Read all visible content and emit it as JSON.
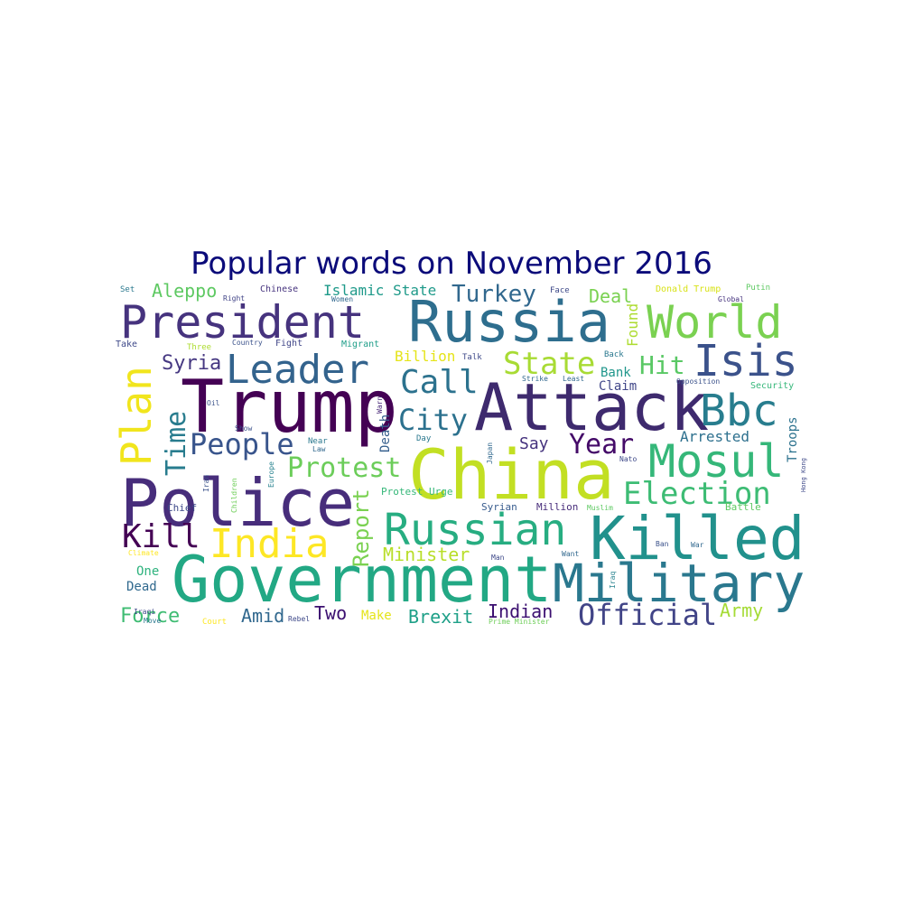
{
  "chart_data": {
    "type": "wordcloud",
    "title": "Popular words on November 2016",
    "title_color": "#0b0b7a",
    "palette": [
      "#440154",
      "#482878",
      "#3e4989",
      "#31688e",
      "#26828e",
      "#1f9e89",
      "#35b779",
      "#6ece58",
      "#b5de2b",
      "#fde725"
    ],
    "background": "#ffffff",
    "words": [
      {
        "text": "Trump",
        "rank": 1,
        "color": "#440154"
      },
      {
        "text": "Attack",
        "rank": 2,
        "color": "#3e2a6e"
      },
      {
        "text": "China",
        "rank": 3,
        "color": "#c2df23"
      },
      {
        "text": "Police",
        "rank": 4,
        "color": "#472d7b"
      },
      {
        "text": "Government",
        "rank": 5,
        "color": "#22a884"
      },
      {
        "text": "Russia",
        "rank": 6,
        "color": "#2e6e8e"
      },
      {
        "text": "Killed",
        "rank": 7,
        "color": "#21918c"
      },
      {
        "text": "President",
        "rank": 8,
        "color": "#46337e"
      },
      {
        "text": "Military",
        "rank": 9,
        "color": "#2a788e"
      },
      {
        "text": "Russian",
        "rank": 10,
        "color": "#27ad81"
      },
      {
        "text": "World",
        "rank": 11,
        "color": "#7ad151"
      },
      {
        "text": "Mosul",
        "rank": 12,
        "color": "#35b779"
      },
      {
        "text": "India",
        "rank": 13,
        "color": "#fde725"
      },
      {
        "text": "Leader",
        "rank": 14,
        "color": "#33638d"
      },
      {
        "text": "Plan",
        "rank": 15,
        "color": "#f1e51d"
      },
      {
        "text": "Isis",
        "rank": 16,
        "color": "#3b528b"
      },
      {
        "text": "Bbc",
        "rank": 17,
        "color": "#287d8e"
      },
      {
        "text": "Election",
        "rank": 18,
        "color": "#3dbc74"
      },
      {
        "text": "Official",
        "rank": 19,
        "color": "#414487"
      },
      {
        "text": "People",
        "rank": 20,
        "color": "#39558c"
      },
      {
        "text": "Kill",
        "rank": 21,
        "color": "#440154"
      },
      {
        "text": "Protest",
        "rank": 22,
        "color": "#6ccd5a"
      },
      {
        "text": "Call",
        "rank": 23,
        "color": "#2c728e"
      },
      {
        "text": "City",
        "rank": 24,
        "color": "#2c718e"
      },
      {
        "text": "State",
        "rank": 25,
        "color": "#a8db34"
      },
      {
        "text": "Year",
        "rank": 26,
        "color": "#440a68"
      },
      {
        "text": "Time",
        "rank": 27,
        "color": "#287c8e"
      },
      {
        "text": "Turkey",
        "rank": 28,
        "color": "#31688e"
      },
      {
        "text": "Report",
        "rank": 29,
        "color": "#7ad151"
      },
      {
        "text": "Hit",
        "rank": 30,
        "color": "#59c864"
      },
      {
        "text": "Syria",
        "rank": 31,
        "color": "#453781"
      },
      {
        "text": "Aleppo",
        "rank": 32,
        "color": "#5ec962"
      },
      {
        "text": "Army",
        "rank": 33,
        "color": "#a5db36"
      },
      {
        "text": "Force",
        "rank": 34,
        "color": "#3fbc73"
      },
      {
        "text": "Indian",
        "rank": 35,
        "color": "#3b0f70"
      },
      {
        "text": "Brexit",
        "rank": 36,
        "color": "#1fa088"
      },
      {
        "text": "Two",
        "rank": 37,
        "color": "#3b0f70"
      },
      {
        "text": "Amid",
        "rank": 38,
        "color": "#31688e"
      },
      {
        "text": "Minister",
        "rank": 39,
        "color": "#b8de29"
      },
      {
        "text": "Deal",
        "rank": 40,
        "color": "#7ad151"
      },
      {
        "text": "Say",
        "rank": 41,
        "color": "#46337e"
      },
      {
        "text": "Arrested",
        "rank": 42,
        "color": "#2d708e"
      },
      {
        "text": "Found",
        "rank": 43,
        "color": "#addc30"
      },
      {
        "text": "Islamic State",
        "rank": 44,
        "color": "#1f9a8a"
      },
      {
        "text": "Bank",
        "rank": 45,
        "color": "#1f968b"
      },
      {
        "text": "Troops",
        "rank": 46,
        "color": "#2c728e"
      },
      {
        "text": "Billion",
        "rank": 47,
        "color": "#e5e419"
      },
      {
        "text": "Claim",
        "rank": 48,
        "color": "#404688"
      },
      {
        "text": "Death",
        "rank": 49,
        "color": "#355f8d"
      },
      {
        "text": "Make",
        "rank": 50,
        "color": "#e5e419"
      },
      {
        "text": "Dead",
        "rank": 51,
        "color": "#30698e"
      },
      {
        "text": "One",
        "rank": 52,
        "color": "#2db27d"
      },
      {
        "text": "Chief",
        "rank": 53,
        "color": "#3e4989"
      },
      {
        "text": "Protest Urge",
        "rank": 54,
        "color": "#35b779"
      },
      {
        "text": "Million",
        "rank": 55,
        "color": "#472c7a"
      },
      {
        "text": "Syrian",
        "rank": 56,
        "color": "#375b8d"
      },
      {
        "text": "Battle",
        "rank": 57,
        "color": "#5ec962"
      },
      {
        "text": "Security",
        "rank": 58,
        "color": "#35b779"
      },
      {
        "text": "Chinese",
        "rank": 59,
        "color": "#46337e"
      },
      {
        "text": "Donald Trump",
        "rank": 60,
        "color": "#d8e219"
      },
      {
        "text": "Putin",
        "rank": 61,
        "color": "#5ec962"
      },
      {
        "text": "Migrant",
        "rank": 62,
        "color": "#1f9e89"
      },
      {
        "text": "Fight",
        "rank": 63,
        "color": "#404688"
      },
      {
        "text": "Face",
        "rank": 64,
        "color": "#3e4989"
      },
      {
        "text": "Set",
        "rank": 65,
        "color": "#2a788e"
      },
      {
        "text": "Take",
        "rank": 66,
        "color": "#3e4989"
      },
      {
        "text": "Three",
        "rank": 67,
        "color": "#addc30"
      },
      {
        "text": "Right",
        "rank": 68,
        "color": "#414487"
      },
      {
        "text": "Country",
        "rank": 69,
        "color": "#3b528b"
      },
      {
        "text": "Women",
        "rank": 70,
        "color": "#31688e"
      },
      {
        "text": "Talk",
        "rank": 71,
        "color": "#3e4989"
      },
      {
        "text": "Back",
        "rank": 72,
        "color": "#2a788e"
      },
      {
        "text": "Global",
        "rank": 73,
        "color": "#46337e"
      },
      {
        "text": "Opposition",
        "rank": 74,
        "color": "#3b528b"
      },
      {
        "text": "Strike",
        "rank": 75,
        "color": "#31688e"
      },
      {
        "text": "Least",
        "rank": 76,
        "color": "#31688e"
      },
      {
        "text": "Warn",
        "rank": 77,
        "color": "#482878"
      },
      {
        "text": "Oil",
        "rank": 78,
        "color": "#3b528b"
      },
      {
        "text": "Show",
        "rank": 79,
        "color": "#3b528b"
      },
      {
        "text": "Near",
        "rank": 80,
        "color": "#2a788e"
      },
      {
        "text": "Law",
        "rank": 81,
        "color": "#31688e"
      },
      {
        "text": "Day",
        "rank": 82,
        "color": "#2a788e"
      },
      {
        "text": "Japan",
        "rank": 83,
        "color": "#31688e"
      },
      {
        "text": "Nato",
        "rank": 84,
        "color": "#3e4989"
      },
      {
        "text": "Hong Kong",
        "rank": 85,
        "color": "#3e4989"
      },
      {
        "text": "Iran",
        "rank": 86,
        "color": "#3b528b"
      },
      {
        "text": "Children",
        "rank": 87,
        "color": "#6ece58"
      },
      {
        "text": "Europe",
        "rank": 88,
        "color": "#26828e"
      },
      {
        "text": "Iraqi",
        "rank": 89,
        "color": "#3e4989"
      },
      {
        "text": "Muslim",
        "rank": 90,
        "color": "#5ec962"
      },
      {
        "text": "Climate",
        "rank": 91,
        "color": "#fde725"
      },
      {
        "text": "Move",
        "rank": 92,
        "color": "#2a788e"
      },
      {
        "text": "Man",
        "rank": 93,
        "color": "#3e4989"
      },
      {
        "text": "Want",
        "rank": 94,
        "color": "#31688e"
      },
      {
        "text": "Ban",
        "rank": 95,
        "color": "#3b528b"
      },
      {
        "text": "War",
        "rank": 96,
        "color": "#31688e"
      },
      {
        "text": "Iraq",
        "rank": 97,
        "color": "#26828e"
      },
      {
        "text": "Court",
        "rank": 98,
        "color": "#fde725"
      },
      {
        "text": "Rebel",
        "rank": 99,
        "color": "#3e4989"
      },
      {
        "text": "Prime Minister",
        "rank": 100,
        "color": "#6ece58"
      }
    ]
  }
}
